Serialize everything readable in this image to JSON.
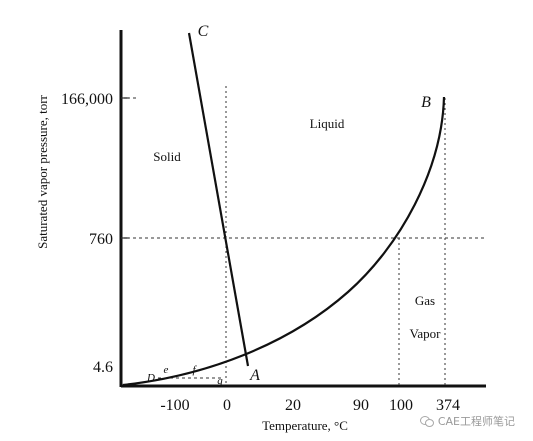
{
  "diagram": {
    "y_axis_label": "Saturated vapor pressure, torr",
    "x_axis_label": "Temperature, °C",
    "y_ticks": [
      "166,000",
      "760",
      "4.6"
    ],
    "x_ticks": [
      "-100",
      "0",
      "20",
      "90",
      "100",
      "374"
    ],
    "regions": {
      "solid": "Solid",
      "liquid": "Liquid",
      "gas": "Gas",
      "vapor": "Vapor"
    },
    "points": {
      "A": "A",
      "B": "B",
      "C": "C",
      "D": "D",
      "e": "e",
      "f": "f",
      "g": "g"
    }
  },
  "watermark": {
    "text": "CAE工程师笔记"
  }
}
